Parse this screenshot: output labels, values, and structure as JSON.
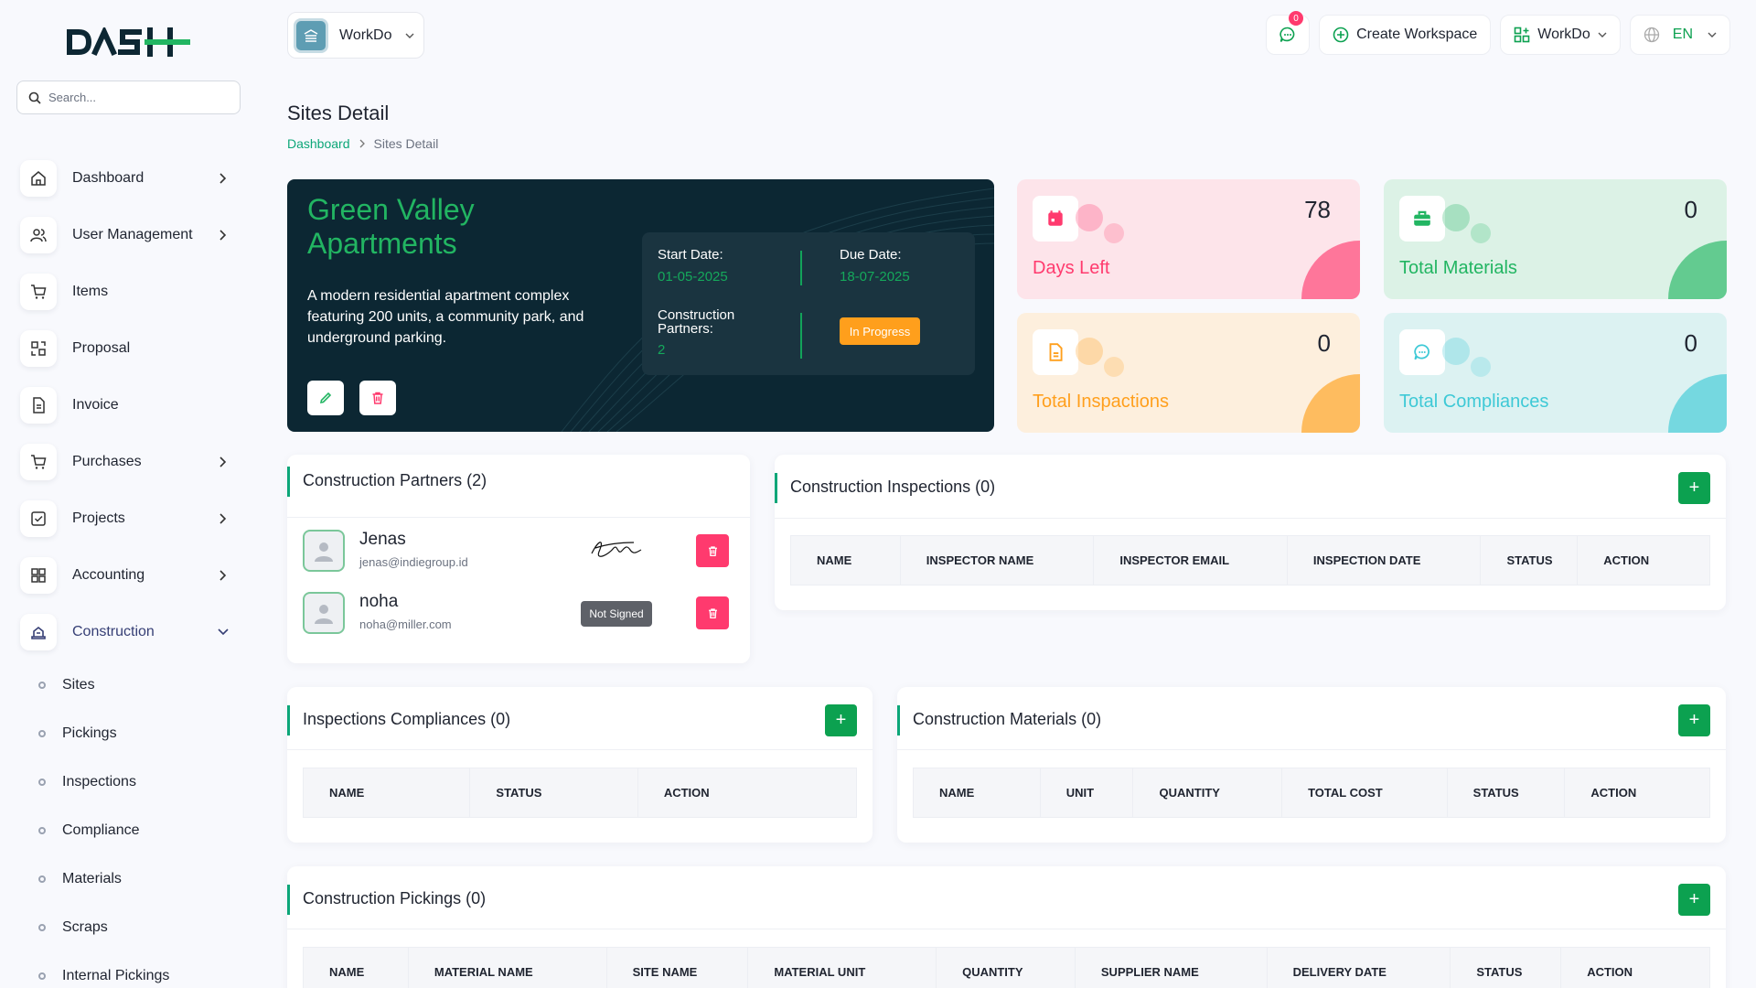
{
  "brand": {
    "logo_text": "DASH"
  },
  "search": {
    "placeholder": "Search..."
  },
  "sidebar": {
    "items": [
      {
        "label": "Dashboard",
        "icon": "home-icon",
        "has_chevron": true
      },
      {
        "label": "User Management",
        "icon": "users-icon",
        "has_chevron": true
      },
      {
        "label": "Items",
        "icon": "cart-icon",
        "has_chevron": false
      },
      {
        "label": "Proposal",
        "icon": "proposal-icon",
        "has_chevron": false
      },
      {
        "label": "Invoice",
        "icon": "invoice-icon",
        "has_chevron": false
      },
      {
        "label": "Purchases",
        "icon": "cart-icon",
        "has_chevron": true
      },
      {
        "label": "Projects",
        "icon": "check-square-icon",
        "has_chevron": true
      },
      {
        "label": "Accounting",
        "icon": "grid-icon",
        "has_chevron": true
      },
      {
        "label": "Construction",
        "icon": "construction-icon",
        "has_chevron": true,
        "expanded": true
      }
    ],
    "subitems": [
      "Sites",
      "Pickings",
      "Inspections",
      "Compliance",
      "Materials",
      "Scraps",
      "Internal Pickings"
    ]
  },
  "topbar": {
    "workspace": "WorkDo",
    "notification_count": "0",
    "create_workspace": "Create Workspace",
    "workspace_menu": "WorkDo",
    "language": "EN"
  },
  "page": {
    "title": "Sites Detail",
    "breadcrumb": {
      "home": "Dashboard",
      "current": "Sites Detail"
    }
  },
  "site": {
    "name": "Green Valley Apartments",
    "description": "A modern residential apartment complex featuring 200 units, a community park, and underground parking.",
    "start_label": "Start Date:",
    "start_date": "01-05-2025",
    "due_label": "Due Date:",
    "due_date": "18-07-2025",
    "partners_label": "Construction Partners:",
    "partners_count": "2",
    "status": "In Progress"
  },
  "stats": [
    {
      "label": "Days Left",
      "value": "78",
      "color": "#ff3a6e",
      "bg": "#fde4ea",
      "icon": "calendar-icon"
    },
    {
      "label": "Total Materials",
      "value": "0",
      "color": "#22b562",
      "bg": "#dcf2e6",
      "icon": "briefcase-icon"
    },
    {
      "label": "Total Inspactions",
      "value": "0",
      "color": "#ff9f1c",
      "bg": "#fdefdd",
      "icon": "document-icon"
    },
    {
      "label": "Total Compliances",
      "value": "0",
      "color": "#3ec9d6",
      "bg": "#dcf2f2",
      "icon": "chat-icon"
    }
  ],
  "partners_card": {
    "title": "Construction Partners (2)",
    "partners": [
      {
        "name": "Jenas",
        "email": "jenas@indiegroup.id",
        "signed": true
      },
      {
        "name": "noha",
        "email": "noha@miller.com",
        "signed": false,
        "status": "Not Signed"
      }
    ]
  },
  "inspections_card": {
    "title": "Construction Inspections (0)",
    "columns": [
      "NAME",
      "INSPECTOR NAME",
      "INSPECTOR EMAIL",
      "INSPECTION DATE",
      "STATUS",
      "ACTION"
    ]
  },
  "compliances_card": {
    "title": "Inspections Compliances (0)",
    "columns": [
      "NAME",
      "STATUS",
      "ACTION"
    ]
  },
  "materials_card": {
    "title": "Construction Materials (0)",
    "columns": [
      "NAME",
      "UNIT",
      "QUANTITY",
      "TOTAL COST",
      "STATUS",
      "ACTION"
    ]
  },
  "pickings_card": {
    "title": "Construction Pickings (0)",
    "columns": [
      "NAME",
      "MATERIAL NAME",
      "SITE NAME",
      "MATERIAL UNIT",
      "QUANTITY",
      "SUPPLIER NAME",
      "DELIVERY DATE",
      "STATUS",
      "ACTION"
    ]
  }
}
